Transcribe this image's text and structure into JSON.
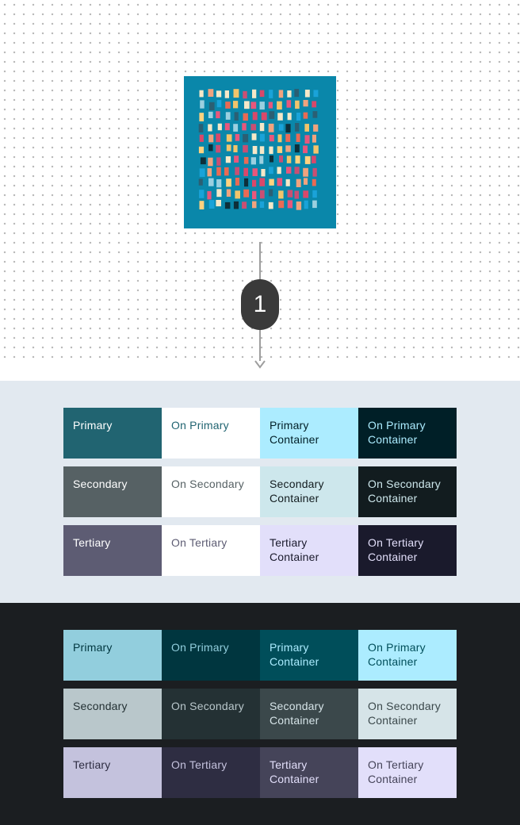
{
  "source": {
    "artwork_name": "abstract-dash-pattern",
    "artwork_background": "#0a87aa",
    "step_number": "1"
  },
  "light_scheme": {
    "rows": [
      {
        "cells": [
          {
            "label": "Primary",
            "bg": "#216471",
            "fg": "#ffffff"
          },
          {
            "label": "On Primary",
            "bg": "#ffffff",
            "fg": "#216471"
          },
          {
            "label": "Primary Container",
            "bg": "#acecff",
            "fg": "#001f27"
          },
          {
            "label": "On Primary Container",
            "bg": "#001f27",
            "fg": "#acecff"
          }
        ]
      },
      {
        "cells": [
          {
            "label": "Secondary",
            "bg": "#566164",
            "fg": "#ffffff"
          },
          {
            "label": "On Secondary",
            "bg": "#ffffff",
            "fg": "#566164"
          },
          {
            "label": "Secondary Container",
            "bg": "#cde7ec",
            "fg": "#121c1f"
          },
          {
            "label": "On Secondary Container",
            "bg": "#121c1f",
            "fg": "#cde7ec"
          }
        ]
      },
      {
        "cells": [
          {
            "label": "Tertiary",
            "bg": "#5d5c73",
            "fg": "#ffffff"
          },
          {
            "label": "On Tertiary",
            "bg": "#ffffff",
            "fg": "#5d5c73"
          },
          {
            "label": "Tertiary Container",
            "bg": "#e2dffa",
            "fg": "#1a1a2c"
          },
          {
            "label": "On Tertiary Container",
            "bg": "#1a1a2c",
            "fg": "#e2dffa"
          }
        ]
      }
    ]
  },
  "dark_scheme": {
    "rows": [
      {
        "cells": [
          {
            "label": "Primary",
            "bg": "#92cedd",
            "fg": "#00363f"
          },
          {
            "label": "On Primary",
            "bg": "#00363f",
            "fg": "#92cedd"
          },
          {
            "label": "Primary Container",
            "bg": "#004e5a",
            "fg": "#acecff"
          },
          {
            "label": "On Primary Container",
            "bg": "#acecff",
            "fg": "#004e5a"
          }
        ]
      },
      {
        "cells": [
          {
            "label": "Secondary",
            "bg": "#b9c7cb",
            "fg": "#243134"
          },
          {
            "label": "On Secondary",
            "bg": "#243134",
            "fg": "#b9c7cb"
          },
          {
            "label": "Secondary Container",
            "bg": "#3b484b",
            "fg": "#d6e4e8"
          },
          {
            "label": "On Secondary Container",
            "bg": "#d6e4e8",
            "fg": "#3b484b"
          }
        ]
      },
      {
        "cells": [
          {
            "label": "Tertiary",
            "bg": "#c4c2dd",
            "fg": "#2e2d42"
          },
          {
            "label": "On Tertiary",
            "bg": "#2e2d42",
            "fg": "#c4c2dd"
          },
          {
            "label": "Tertiary Container",
            "bg": "#454459",
            "fg": "#e2dffa"
          },
          {
            "label": "On Tertiary Container",
            "bg": "#e2dffa",
            "fg": "#454459"
          }
        ]
      }
    ]
  }
}
